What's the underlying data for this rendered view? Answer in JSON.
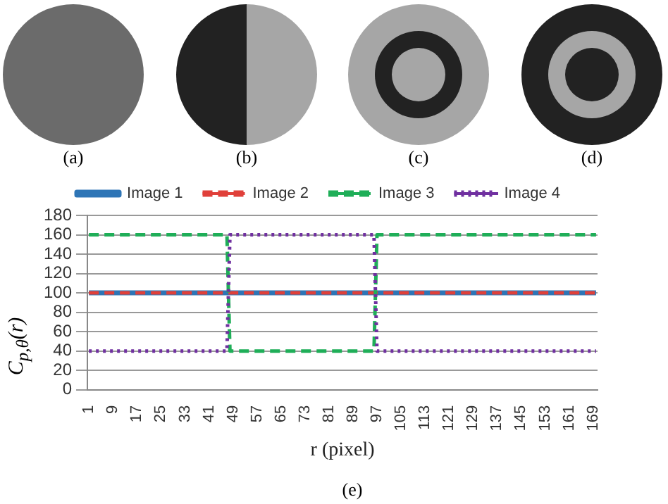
{
  "chart_data": {
    "type": "line",
    "xlabel": "r (pixel)",
    "ylabel": "C$_{p,θ}$(r)",
    "annotations": [
      "(a)",
      "(b)",
      "(c)",
      "(d)",
      "(e)"
    ],
    "xlim": [
      0.5,
      170.5
    ],
    "xticks": [
      1,
      9,
      17,
      25,
      33,
      41,
      49,
      57,
      65,
      73,
      81,
      89,
      97,
      105,
      113,
      121,
      129,
      137,
      145,
      153,
      161,
      169
    ],
    "ylim": [
      0,
      180
    ],
    "yticks": [
      0,
      20,
      40,
      60,
      80,
      100,
      120,
      140,
      160,
      180
    ],
    "grid": "y",
    "legend": "top",
    "marker": "none",
    "series": [
      {
        "name": "Image 1",
        "color": "#2e75b6",
        "line_style": "solid",
        "x": [
          1,
          170
        ],
        "values": [
          100,
          100
        ]
      },
      {
        "name": "Image 2",
        "color": "#e0403a",
        "line_style": "dashed",
        "x": [
          1,
          170
        ],
        "values": [
          100,
          100
        ]
      },
      {
        "name": "Image 3",
        "color": "#1fae58",
        "line_style": "dashed",
        "x": [
          1,
          47,
          48,
          96,
          97,
          170
        ],
        "values": [
          160,
          160,
          40,
          40,
          160,
          160
        ]
      },
      {
        "name": "Image 4",
        "color": "#7030a0",
        "line_style": "dotted",
        "x": [
          1,
          47,
          48,
          96,
          97,
          170
        ],
        "values": [
          40,
          40,
          160,
          160,
          40,
          40
        ]
      }
    ]
  }
}
